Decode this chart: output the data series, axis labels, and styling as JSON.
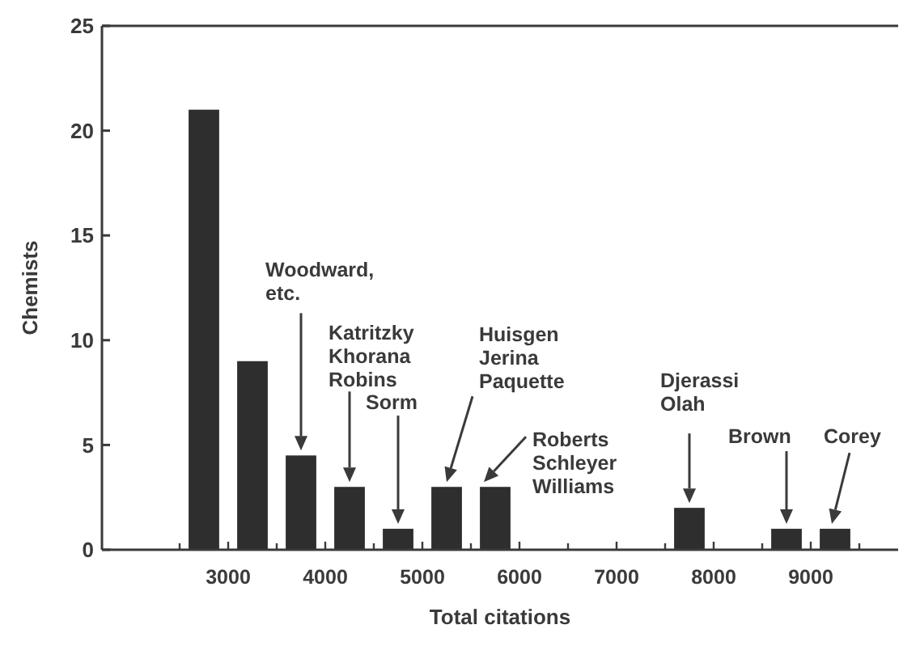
{
  "chart_data": {
    "type": "histogram",
    "xlabel": "Total citations",
    "ylabel": "Chemists",
    "color": "#2e2e2e",
    "bins": [
      2500,
      3000,
      3500,
      4000,
      4500,
      5000,
      5500,
      6000,
      6500,
      7000,
      7500,
      8000,
      8500,
      9000,
      9500
    ],
    "values": [
      21,
      9,
      4.5,
      3,
      1,
      3,
      3,
      0,
      0,
      0,
      2,
      0,
      1,
      1
    ],
    "xlim": [
      1700,
      9900
    ],
    "xticks": [
      {
        "value": 2500,
        "label": null
      },
      3000,
      {
        "value": 3500,
        "label": null
      },
      4000,
      {
        "value": 4500,
        "label": null
      },
      5000,
      {
        "value": 5500,
        "label": null
      },
      6000,
      {
        "value": 6500,
        "label": null
      },
      7000,
      {
        "value": 7500,
        "label": null
      },
      8000,
      {
        "value": 8500,
        "label": null
      },
      9000,
      {
        "value": 9500,
        "label": null
      }
    ],
    "ylim": [
      0,
      25
    ],
    "yticks": [
      0,
      5,
      10,
      15,
      20,
      25
    ],
    "grid": false,
    "annotations": [
      "Woodward,\netc.",
      "Katritzky\nKhorana\nRobins",
      "Sorm",
      "Huisgen\nJerina\nPaquette",
      "Roberts\nSchleyer\nWilliams",
      "Djerassi\nOlah",
      "Brown",
      "Corey"
    ]
  }
}
